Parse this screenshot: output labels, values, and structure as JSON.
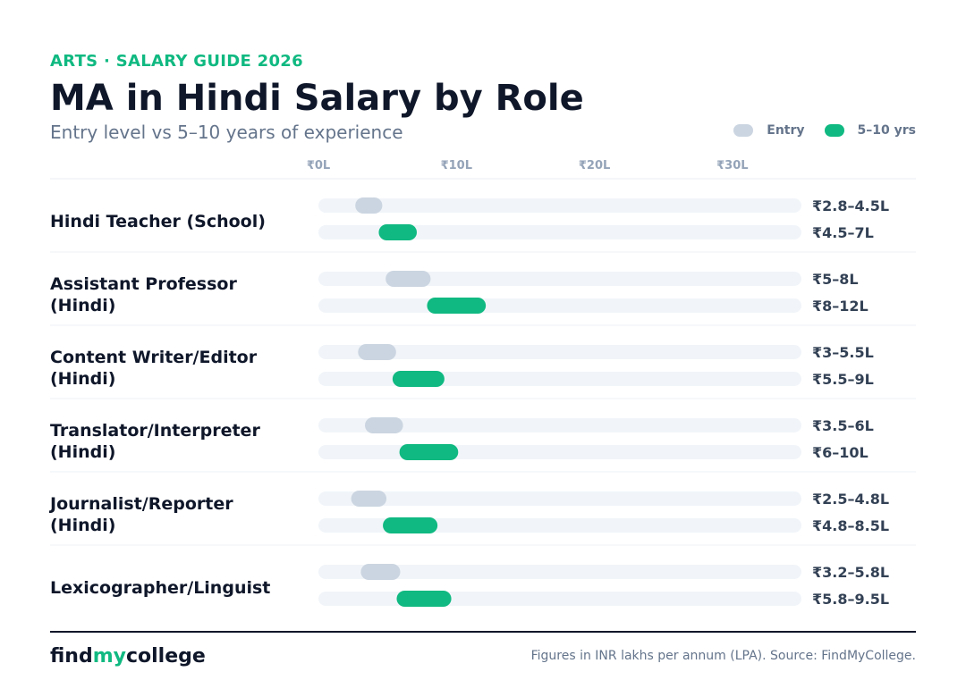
{
  "header": {
    "kicker": "ARTS · SALARY GUIDE 2026",
    "title": "MA in Hindi Salary by Role",
    "subtitle": "Entry level vs 5–10 years of experience"
  },
  "legend": {
    "entry_label": "Entry",
    "experienced_label": "5–10 yrs"
  },
  "colors": {
    "entry": "#cbd5e1",
    "experienced": "#10b981",
    "track": "#f1f5f9",
    "accent": "#10b981",
    "text_dark": "#0f172a",
    "text_muted": "#64748b",
    "tick": "#94a3b8"
  },
  "footer": {
    "brand_part1": "find",
    "brand_part2": "my",
    "brand_part3": "college",
    "source": "Figures in INR lakhs per annum (LPA). Source: FindMyCollege."
  },
  "chart_data": {
    "type": "bar",
    "orientation": "horizontal-range",
    "title": "MA in Hindi Salary by Role",
    "subtitle": "Entry level vs 5–10 years of experience",
    "unit": "INR lakhs per annum",
    "xlim": [
      0,
      35
    ],
    "x_ticks": [
      0,
      10,
      20,
      30
    ],
    "x_tick_labels": [
      "₹0L",
      "₹10L",
      "₹20L",
      "₹30L"
    ],
    "grid": false,
    "legend_position": "top-right",
    "series": [
      {
        "name": "Entry",
        "key": "entry"
      },
      {
        "name": "5–10 yrs",
        "key": "experienced"
      }
    ],
    "categories": [
      {
        "lines": [
          "Hindi Teacher (School)"
        ],
        "entry": {
          "min": 2.8,
          "max": 4.5,
          "label": "₹2.8–4.5L"
        },
        "experienced": {
          "min": 4.5,
          "max": 7,
          "label": "₹4.5–7L"
        }
      },
      {
        "lines": [
          "Assistant Professor",
          "(Hindi)"
        ],
        "entry": {
          "min": 5,
          "max": 8,
          "label": "₹5–8L"
        },
        "experienced": {
          "min": 8,
          "max": 12,
          "label": "₹8–12L"
        }
      },
      {
        "lines": [
          "Content Writer/Editor",
          "(Hindi)"
        ],
        "entry": {
          "min": 3,
          "max": 5.5,
          "label": "₹3–5.5L"
        },
        "experienced": {
          "min": 5.5,
          "max": 9,
          "label": "₹5.5–9L"
        }
      },
      {
        "lines": [
          "Translator/Interpreter",
          "(Hindi)"
        ],
        "entry": {
          "min": 3.5,
          "max": 6,
          "label": "₹3.5–6L"
        },
        "experienced": {
          "min": 6,
          "max": 10,
          "label": "₹6–10L"
        }
      },
      {
        "lines": [
          "Journalist/Reporter",
          "(Hindi)"
        ],
        "entry": {
          "min": 2.5,
          "max": 4.8,
          "label": "₹2.5–4.8L"
        },
        "experienced": {
          "min": 4.8,
          "max": 8.5,
          "label": "₹4.8–8.5L"
        }
      },
      {
        "lines": [
          "Lexicographer/Linguist"
        ],
        "entry": {
          "min": 3.2,
          "max": 5.8,
          "label": "₹3.2–5.8L"
        },
        "experienced": {
          "min": 5.8,
          "max": 9.5,
          "label": "₹5.8–9.5L"
        }
      }
    ]
  }
}
